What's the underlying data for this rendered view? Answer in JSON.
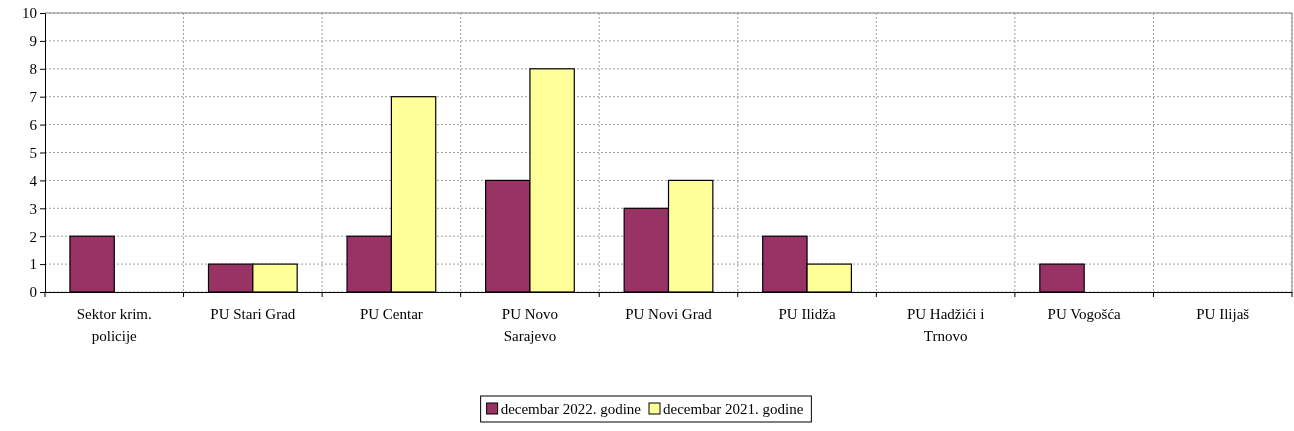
{
  "chart_data": {
    "type": "bar",
    "categories": [
      "Sektor krim. policije",
      "PU Stari Grad",
      "PU Centar",
      "PU Novo Sarajevo",
      "PU Novi Grad",
      "PU Ilidža",
      "PU Hadžići i Trnovo",
      "PU Vogošća",
      "PU Ilijaš"
    ],
    "series": [
      {
        "name": "decembar 2022. godine",
        "color": "#993366",
        "values": [
          2,
          1,
          2,
          4,
          3,
          2,
          0,
          1,
          0
        ]
      },
      {
        "name": "decembar 2021. godine",
        "color": "#ffff99",
        "values": [
          0,
          1,
          7,
          8,
          4,
          1,
          0,
          0,
          0
        ]
      }
    ],
    "ylim": [
      0,
      10
    ],
    "yticks": [
      0,
      1,
      2,
      3,
      4,
      5,
      6,
      7,
      8,
      9,
      10
    ],
    "grid": true,
    "legend": "bottom"
  }
}
